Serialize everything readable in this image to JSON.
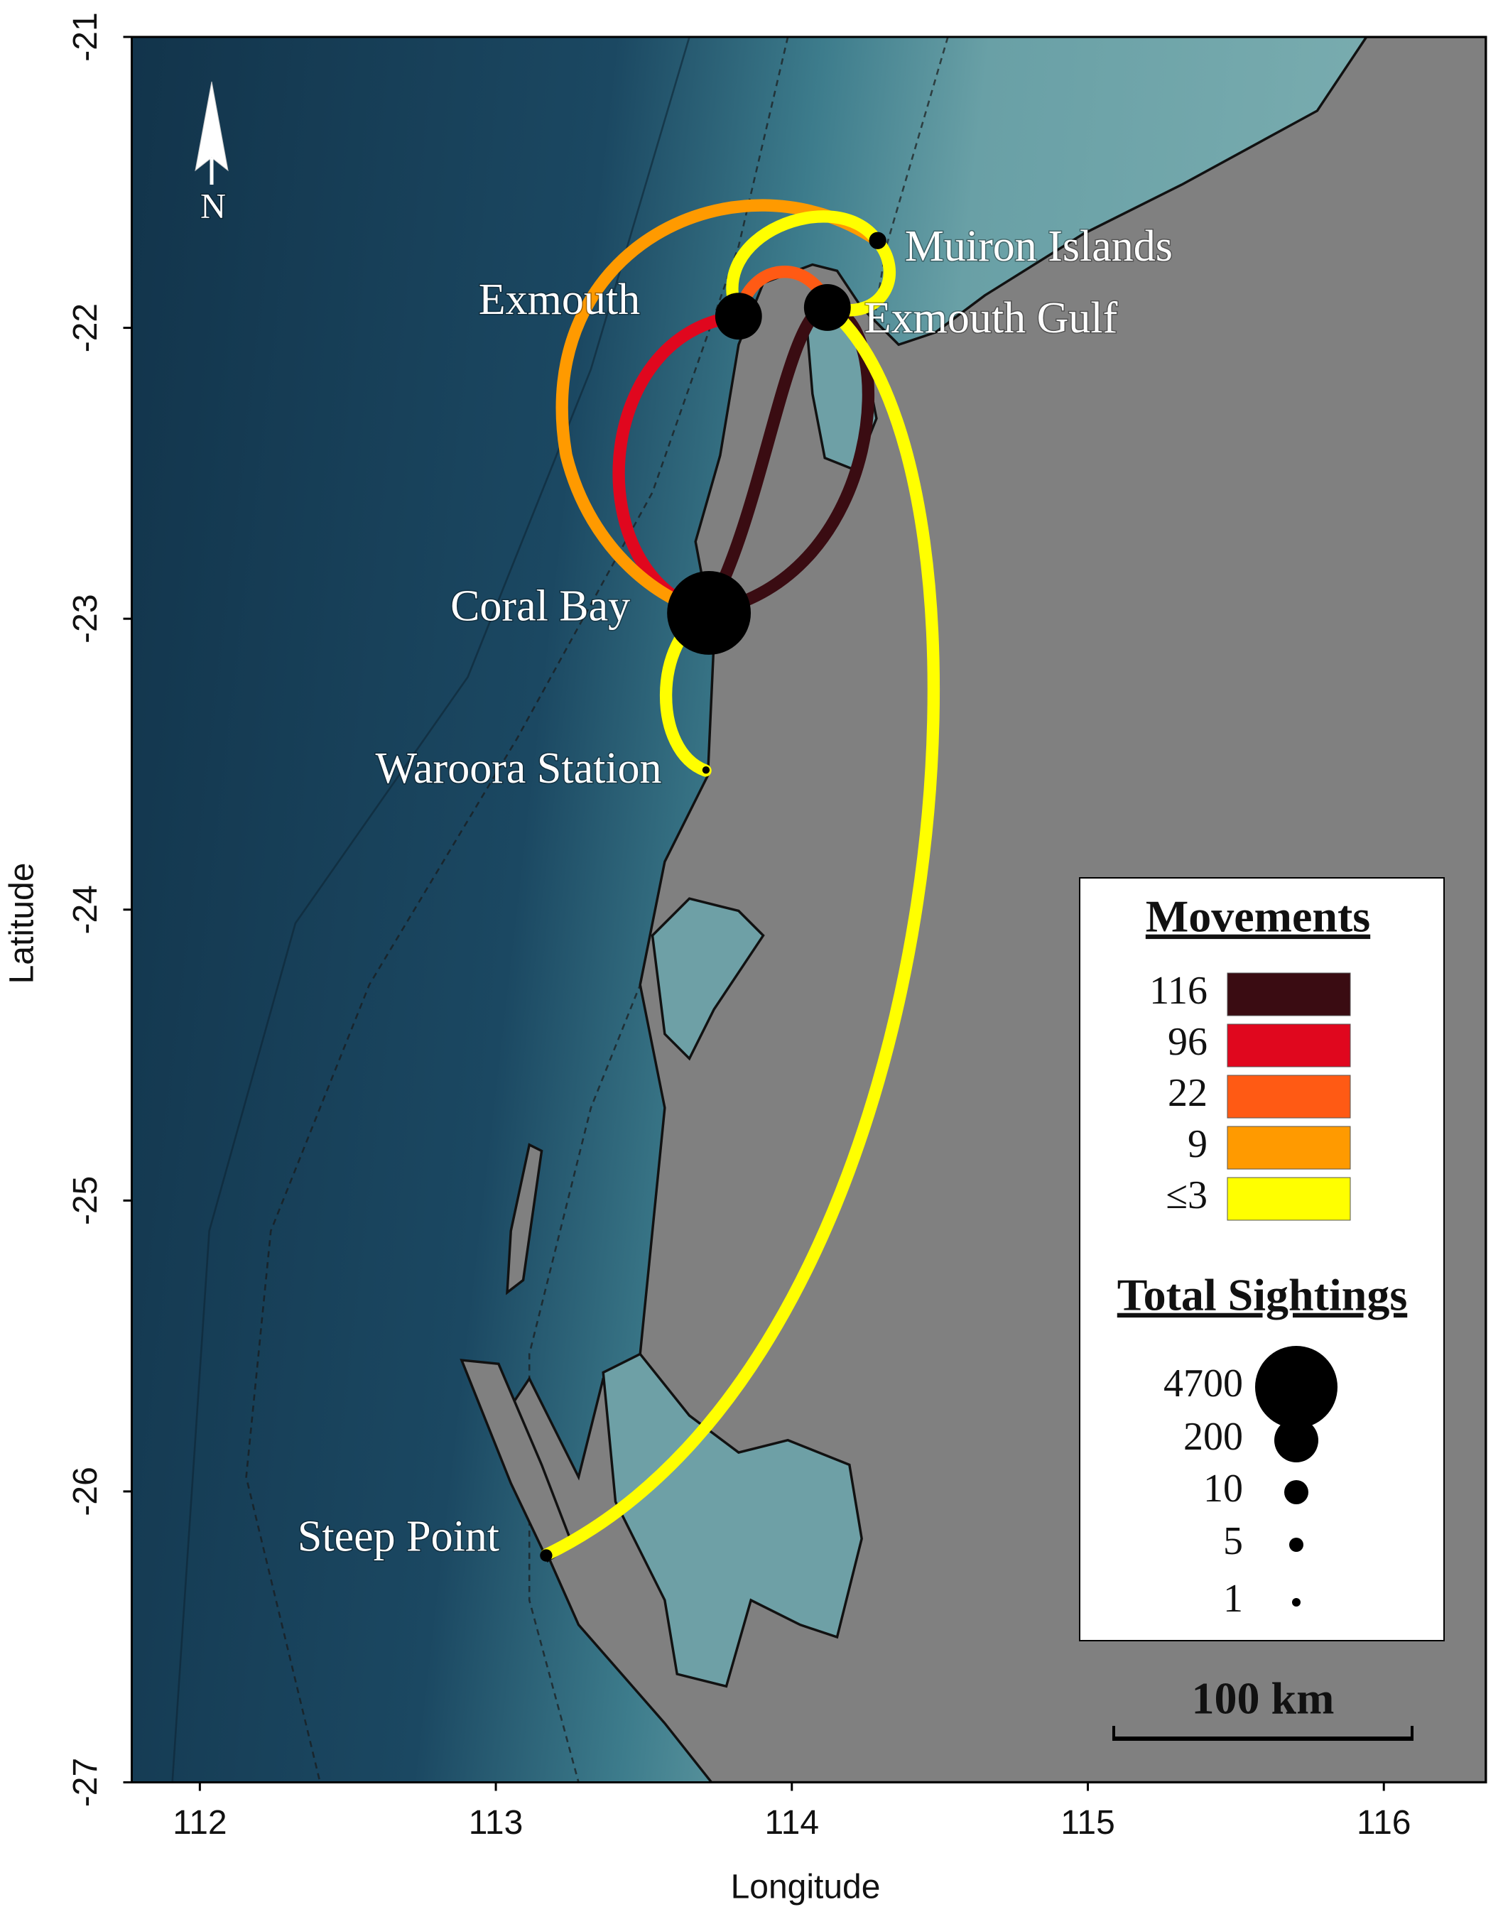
{
  "map": {
    "xlabel": "Longitude",
    "ylabel": "Latitude",
    "xlim": [
      111.77,
      116.345
    ],
    "ylim": [
      -27,
      -21
    ],
    "xticks": [
      112,
      113,
      114,
      115,
      116
    ],
    "yticks": [
      -21,
      -22,
      -23,
      -24,
      -25,
      -26,
      -27
    ],
    "north": "N",
    "sites": [
      {
        "label": "Exmouth",
        "lon": 113.82,
        "lat": -21.96
      },
      {
        "label": "Exmouth Gulf",
        "lon": 114.12,
        "lat": -21.93
      },
      {
        "label": "Muiron Islands",
        "lon": 114.29,
        "lat": -21.7
      },
      {
        "label": "Coral Bay",
        "lon": 113.72,
        "lat": -22.98
      },
      {
        "label": "Waroora Station",
        "lon": 113.71,
        "lat": -23.52
      },
      {
        "label": "Steep Point",
        "lon": 113.17,
        "lat": -26.22
      }
    ],
    "legend_movements": {
      "title": "Movements",
      "items": [
        {
          "label": "116",
          "color": "#3a0c12"
        },
        {
          "label": "96",
          "color": "#e0071e"
        },
        {
          "label": "22",
          "color": "#ff5a14"
        },
        {
          "label": "9",
          "color": "#ff9a00"
        },
        {
          "label": "≤3",
          "color": "#ffff00"
        }
      ]
    },
    "legend_sightings": {
      "title": "Total Sightings",
      "items": [
        4700,
        200,
        10,
        5,
        1
      ]
    },
    "scale_bar": "100 km"
  }
}
